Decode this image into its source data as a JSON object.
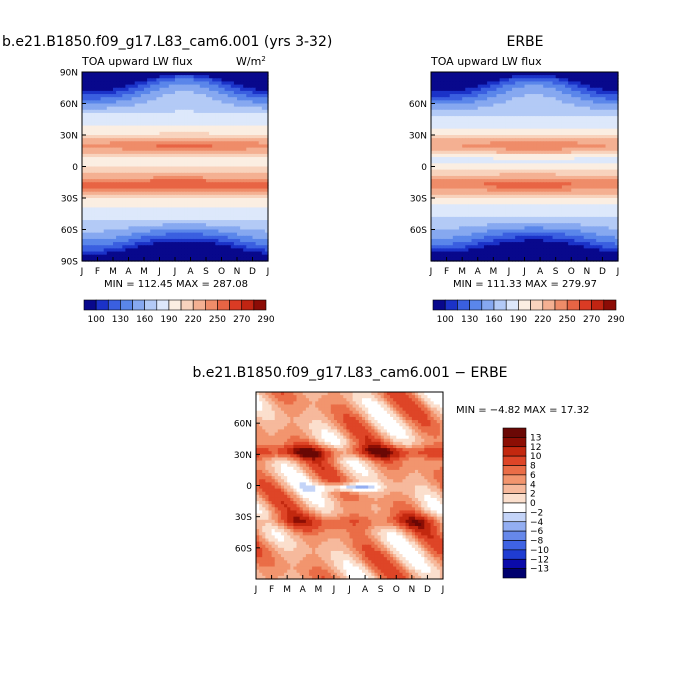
{
  "header": {
    "case_title": "b.e21.B1850.f09_g17.L83_cam6.001 (yrs 3-32)",
    "obs_title": "ERBE",
    "diff_title": "b.e21.B1850.f09_g17.L83_cam6.001 − ERBE"
  },
  "chart_data": [
    {
      "id": "model",
      "type": "heatmap",
      "title": "b.e21.B1850.f09_g17.L83_cam6.001 (yrs 3-32)",
      "left_label": "TOA upward LW flux",
      "right_label": "W/m",
      "right_label_sup": "2",
      "x_ticks": [
        "J",
        "F",
        "M",
        "A",
        "M",
        "J",
        "J",
        "A",
        "S",
        "O",
        "N",
        "D",
        "J"
      ],
      "y_ticks": [
        "90N",
        "60N",
        "30N",
        "0",
        "30S",
        "60S",
        "90S"
      ],
      "ylim": [
        -90,
        90
      ],
      "min": 112.45,
      "max": 287.08,
      "stats_text": "MIN = 112.45 MAX = 287.08",
      "colorbar_levels": [
        "100",
        "130",
        "160",
        "190",
        "220",
        "250",
        "270",
        "290"
      ],
      "colorbar_orientation": "horizontal"
    },
    {
      "id": "obs",
      "type": "heatmap",
      "title": "ERBE",
      "left_label": "TOA upward LW flux",
      "x_ticks": [
        "J",
        "F",
        "M",
        "A",
        "M",
        "J",
        "J",
        "A",
        "S",
        "O",
        "N",
        "D",
        "J"
      ],
      "y_ticks": [
        "60N",
        "30N",
        "0",
        "30S",
        "60S"
      ],
      "ylim": [
        -90,
        90
      ],
      "min": 111.33,
      "max": 279.97,
      "stats_text": "MIN = 111.33 MAX = 279.97",
      "colorbar_levels": [
        "100",
        "130",
        "160",
        "190",
        "220",
        "250",
        "270",
        "290"
      ],
      "colorbar_orientation": "horizontal"
    },
    {
      "id": "diff",
      "type": "heatmap",
      "title": "b.e21.B1850.f09_g17.L83_cam6.001 − ERBE",
      "x_ticks": [
        "J",
        "F",
        "M",
        "A",
        "M",
        "J",
        "J",
        "A",
        "S",
        "O",
        "N",
        "D",
        "J"
      ],
      "y_ticks": [
        "60N",
        "30N",
        "0",
        "30S",
        "60S"
      ],
      "ylim": [
        -90,
        90
      ],
      "min": -4.82,
      "max": 17.32,
      "stats_text": "MIN = −4.82 MAX =  17.32",
      "colorbar_levels": [
        "13",
        "12",
        "10",
        "8",
        "6",
        "4",
        "2",
        "0",
        "−2",
        "−4",
        "−6",
        "−8",
        "−10",
        "−12",
        "−13"
      ],
      "colorbar_orientation": "vertical"
    }
  ],
  "colors": {
    "abs_scale": [
      "#08088c",
      "#1b32c8",
      "#3a5fe0",
      "#5a86ea",
      "#86a8f0",
      "#b3caf6",
      "#dde8fb",
      "#fbeee2",
      "#f8d3bd",
      "#f4b092",
      "#ef8c69",
      "#e86444",
      "#db3b24",
      "#c02412",
      "#8c0c06"
    ],
    "diff_scale": [
      "#00006e",
      "#0a0aaa",
      "#1f3cd2",
      "#3f63e3",
      "#6688ea",
      "#93aef2",
      "#c4d4f8",
      "#ffffff",
      "#fbdfcd",
      "#f6b99c",
      "#f2956e",
      "#ea6d47",
      "#de4527",
      "#c3280f",
      "#8c0e04",
      "#6a0805"
    ]
  }
}
